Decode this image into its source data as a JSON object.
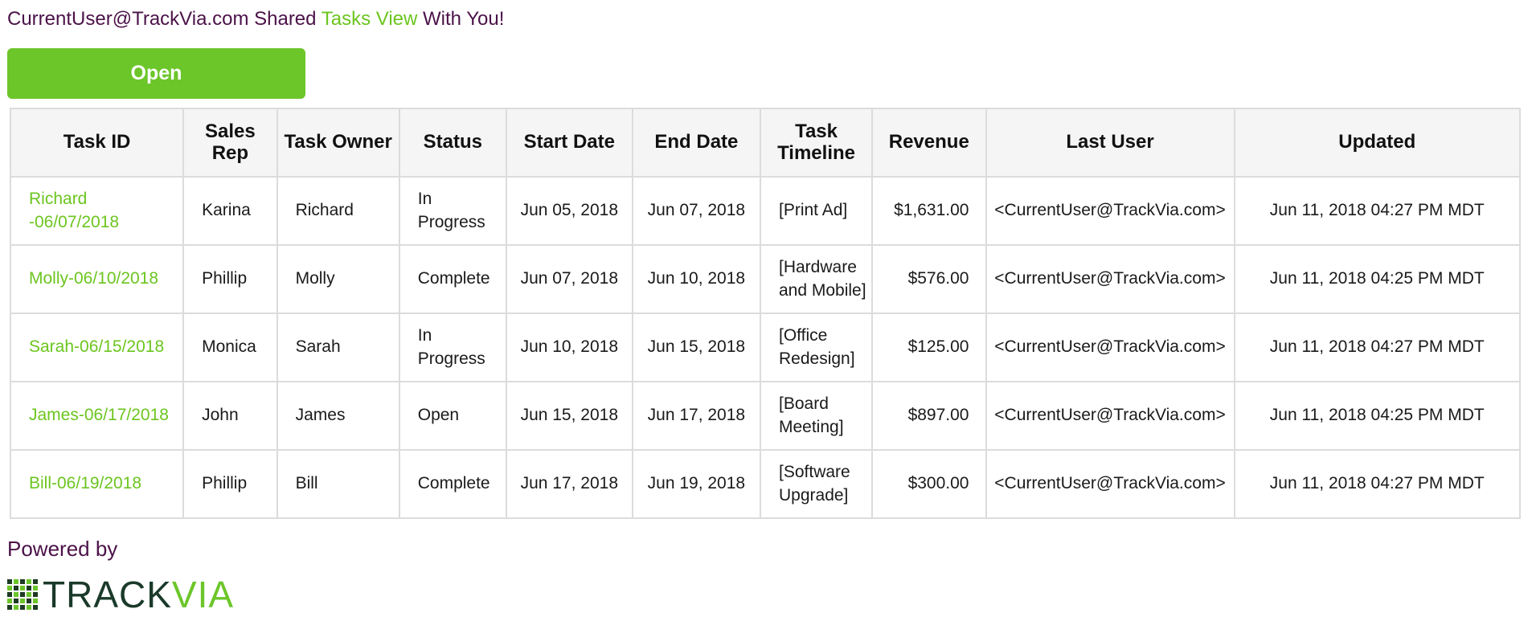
{
  "header": {
    "user": "CurrentUser@TrackVia.com",
    "shared_text": "Shared",
    "view_name": "Tasks View",
    "suffix": "With You!"
  },
  "open_button": {
    "label": "Open"
  },
  "table": {
    "columns": [
      "Task ID",
      "Sales Rep",
      "Task Owner",
      "Status",
      "Start Date",
      "End Date",
      "Task Timeline",
      "Revenue",
      "Last User",
      "Updated"
    ],
    "rows": [
      {
        "task_id": "Richard -06/07/2018",
        "sales_rep": "Karina",
        "task_owner": "Richard",
        "status": "In Progress",
        "start_date": "Jun 05, 2018",
        "end_date": "Jun 07, 2018",
        "timeline": "[Print Ad]",
        "revenue": "$1,631.00",
        "last_user": "<CurrentUser@TrackVia.com>",
        "updated": "Jun 11, 2018 04:27 PM MDT"
      },
      {
        "task_id": "Molly-06/10/2018",
        "sales_rep": "Phillip",
        "task_owner": "Molly",
        "status": "Complete",
        "start_date": "Jun 07, 2018",
        "end_date": "Jun 10, 2018",
        "timeline": "[Hardware and Mobile]",
        "revenue": "$576.00",
        "last_user": "<CurrentUser@TrackVia.com>",
        "updated": "Jun 11, 2018 04:25 PM MDT"
      },
      {
        "task_id": "Sarah-06/15/2018",
        "sales_rep": "Monica",
        "task_owner": "Sarah",
        "status": "In Progress",
        "start_date": "Jun 10, 2018",
        "end_date": "Jun 15, 2018",
        "timeline": "[Office Redesign]",
        "revenue": "$125.00",
        "last_user": "<CurrentUser@TrackVia.com>",
        "updated": "Jun 11, 2018 04:27 PM MDT"
      },
      {
        "task_id": "James-06/17/2018",
        "sales_rep": "John",
        "task_owner": "James",
        "status": "Open",
        "start_date": "Jun 15, 2018",
        "end_date": "Jun 17, 2018",
        "timeline": "[Board Meeting]",
        "revenue": "$897.00",
        "last_user": "<CurrentUser@TrackVia.com>",
        "updated": "Jun 11, 2018 04:25 PM MDT"
      },
      {
        "task_id": "Bill-06/19/2018",
        "sales_rep": "Phillip",
        "task_owner": "Bill",
        "status": "Complete",
        "start_date": "Jun 17, 2018",
        "end_date": "Jun 19, 2018",
        "timeline": "[Software Upgrade]",
        "revenue": "$300.00",
        "last_user": "<CurrentUser@TrackVia.com>",
        "updated": "Jun 11, 2018 04:27 PM MDT"
      }
    ]
  },
  "footer": {
    "powered_by": "Powered by",
    "logo_text_dark": "TRACK",
    "logo_text_green": "VIA"
  },
  "colors": {
    "accent_green": "#6cc62a",
    "purple_text": "#4b1248"
  }
}
